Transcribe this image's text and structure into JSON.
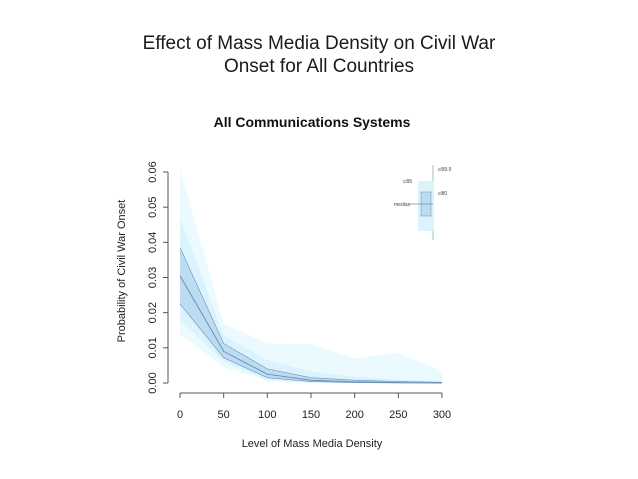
{
  "slide": {
    "title_line1": "Effect of Mass Media Density on Civil War",
    "title_line2": "Onset for All Countries"
  },
  "colors": {
    "ci999": "#eafaff",
    "ci95": "#daf3fd",
    "ci80": "#bcdcf2",
    "median": "#6f8fb5",
    "axis": "#555555"
  },
  "chart_data": {
    "type": "area",
    "title": "All Communications Systems",
    "xlabel": "Level of Mass Media Density",
    "ylabel": "Probability of Civil War Onset",
    "xlim": [
      0,
      300
    ],
    "ylim": [
      0,
      0.06
    ],
    "xticks": [
      0,
      50,
      100,
      150,
      200,
      250,
      300
    ],
    "yticks": [
      0.0,
      0.01,
      0.02,
      0.03,
      0.04,
      0.05,
      0.06
    ],
    "ytick_labels": [
      "0.00",
      "0.01",
      "0.02",
      "0.03",
      "0.04",
      "0.05",
      "0.06"
    ],
    "x": [
      0,
      50,
      100,
      150,
      200,
      250,
      300
    ],
    "series": [
      {
        "name": "median",
        "values": [
          0.0305,
          0.009,
          0.0025,
          0.0008,
          0.0003,
          0.0001,
          0.0
        ]
      },
      {
        "name": "ci80_upper",
        "values": [
          0.0385,
          0.0112,
          0.004,
          0.0015,
          0.0008,
          0.0004,
          0.0002
        ]
      },
      {
        "name": "ci80_lower",
        "values": [
          0.0225,
          0.0072,
          0.0015,
          0.0004,
          0.0001,
          0.0,
          0.0
        ]
      },
      {
        "name": "ci95_upper",
        "values": [
          0.047,
          0.0135,
          0.0065,
          0.0032,
          0.0018,
          0.001,
          0.0005
        ]
      },
      {
        "name": "ci95_lower",
        "values": [
          0.018,
          0.006,
          0.001,
          0.0002,
          0.0,
          0.0,
          0.0
        ]
      },
      {
        "name": "ci999_upper",
        "values": [
          0.061,
          0.017,
          0.0112,
          0.011,
          0.007,
          0.0085,
          0.0035
        ]
      },
      {
        "name": "ci999_lower",
        "values": [
          0.014,
          0.0045,
          0.0005,
          0.0,
          0.0,
          0.0,
          0.0
        ]
      }
    ],
    "legend": {
      "position": "top-right",
      "labels": {
        "ci999": "ci99.9",
        "ci95": "ci95",
        "ci80": "ci80",
        "median": "median"
      }
    }
  }
}
